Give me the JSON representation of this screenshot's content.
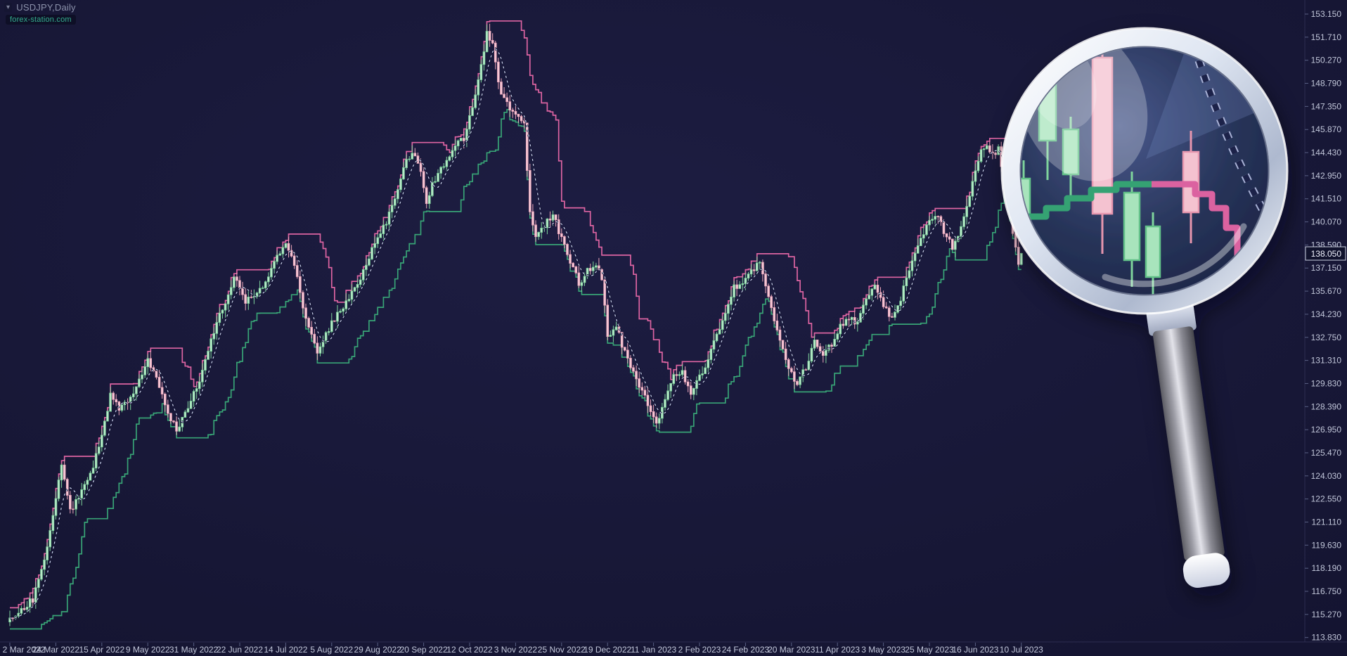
{
  "header": {
    "symbol_label": "USDJPY,Daily",
    "watermark": "forex-station.com",
    "dropdown_glyph": "▾"
  },
  "colors": {
    "background": "#161634",
    "axis_text": "#c2c7da",
    "axis_line": "#2c2c50",
    "bull_fill": "#bfeccf",
    "bull_stroke": "#7fd49c",
    "bear_fill": "#f6cdd9",
    "bear_stroke": "#eda6bb",
    "support_line": "#38a476",
    "resistance_line": "#dd64a2",
    "dotted_ma_core": "#c9cfec",
    "dotted_ma_casing": "#0d0f2b",
    "badge_bg": "#10122c",
    "badge_border": "#c9cede",
    "badge_text": "#f2f4ff",
    "watermark_text": "#34ae8e"
  },
  "chart_data": {
    "type": "candlestick",
    "title": "USDJPY,Daily",
    "symbol": "USDJPY",
    "timeframe": "Daily",
    "ylim": [
      113.83,
      153.15
    ],
    "y_tick_labels": [
      "153.150",
      "151.710",
      "150.270",
      "148.790",
      "147.350",
      "145.870",
      "144.430",
      "142.950",
      "141.510",
      "140.070",
      "138.590",
      "137.150",
      "135.670",
      "134.230",
      "132.750",
      "131.310",
      "129.830",
      "128.390",
      "126.950",
      "125.470",
      "124.030",
      "122.550",
      "121.110",
      "119.630",
      "118.190",
      "116.750",
      "115.270",
      "113.830"
    ],
    "x_tick_labels": [
      "2 Mar 2022",
      "24 Mar 2022",
      "15 Apr 2022",
      "9 May 2022",
      "31 May 2022",
      "22 Jun 2022",
      "14 Jul 2022",
      "5 Aug 2022",
      "29 Aug 2022",
      "20 Sep 2022",
      "12 Oct 2022",
      "3 Nov 2022",
      "25 Nov 2022",
      "19 Dec 2022",
      "11 Jan 2023",
      "2 Feb 2023",
      "24 Feb 2023",
      "20 Mar 2023",
      "11 Apr 2023",
      "3 May 2023",
      "25 May 2023",
      "16 Jun 2023",
      "10 Jul 2023"
    ],
    "x_tick_every_bars": 16,
    "bars_total": 353,
    "noise_amplitude": 0.45,
    "current_price": "138.050",
    "last_close": 138.05,
    "close_anchors": [
      [
        0,
        115.0
      ],
      [
        4,
        115.6
      ],
      [
        8,
        116.2
      ],
      [
        12,
        118.6
      ],
      [
        15,
        121.3
      ],
      [
        18,
        124.9
      ],
      [
        21,
        121.9
      ],
      [
        24,
        122.6
      ],
      [
        28,
        124.1
      ],
      [
        32,
        126.4
      ],
      [
        35,
        129.2
      ],
      [
        38,
        128.1
      ],
      [
        42,
        128.9
      ],
      [
        45,
        130.0
      ],
      [
        48,
        131.2
      ],
      [
        51,
        130.1
      ],
      [
        55,
        128.0
      ],
      [
        58,
        127.0
      ],
      [
        62,
        128.3
      ],
      [
        66,
        130.0
      ],
      [
        70,
        132.6
      ],
      [
        74,
        134.6
      ],
      [
        78,
        136.5
      ],
      [
        82,
        135.1
      ],
      [
        86,
        135.4
      ],
      [
        90,
        136.6
      ],
      [
        94,
        138.2
      ],
      [
        96,
        138.9
      ],
      [
        99,
        137.2
      ],
      [
        103,
        133.9
      ],
      [
        107,
        131.8
      ],
      [
        110,
        133.0
      ],
      [
        114,
        134.3
      ],
      [
        118,
        135.2
      ],
      [
        122,
        136.6
      ],
      [
        126,
        138.2
      ],
      [
        129,
        139.2
      ],
      [
        133,
        141.0
      ],
      [
        137,
        143.5
      ],
      [
        140,
        144.5
      ],
      [
        143,
        143.2
      ],
      [
        145,
        141.2
      ],
      [
        147,
        142.4
      ],
      [
        151,
        143.6
      ],
      [
        155,
        144.8
      ],
      [
        158,
        145.3
      ],
      [
        161,
        147.2
      ],
      [
        164,
        150.0
      ],
      [
        166,
        151.9
      ],
      [
        168,
        151.3
      ],
      [
        170,
        148.7
      ],
      [
        173,
        147.4
      ],
      [
        176,
        146.7
      ],
      [
        179,
        146.1
      ],
      [
        181,
        140.6
      ],
      [
        183,
        138.9
      ],
      [
        186,
        139.8
      ],
      [
        189,
        140.5
      ],
      [
        192,
        139.0
      ],
      [
        195,
        137.6
      ],
      [
        198,
        136.2
      ],
      [
        201,
        136.9
      ],
      [
        204,
        137.4
      ],
      [
        206,
        136.6
      ],
      [
        208,
        132.8
      ],
      [
        211,
        133.4
      ],
      [
        214,
        131.8
      ],
      [
        217,
        130.6
      ],
      [
        220,
        129.4
      ],
      [
        223,
        128.0
      ],
      [
        225,
        127.3
      ],
      [
        228,
        128.9
      ],
      [
        231,
        130.3
      ],
      [
        234,
        130.5
      ],
      [
        237,
        129.3
      ],
      [
        240,
        130.2
      ],
      [
        243,
        131.4
      ],
      [
        246,
        132.8
      ],
      [
        249,
        134.1
      ],
      [
        252,
        135.9
      ],
      [
        255,
        136.3
      ],
      [
        258,
        136.9
      ],
      [
        261,
        137.6
      ],
      [
        263,
        136.1
      ],
      [
        266,
        133.6
      ],
      [
        269,
        132.0
      ],
      [
        272,
        130.5
      ],
      [
        274,
        129.7
      ],
      [
        277,
        130.9
      ],
      [
        280,
        132.6
      ],
      [
        283,
        131.4
      ],
      [
        286,
        132.4
      ],
      [
        289,
        133.4
      ],
      [
        292,
        134.1
      ],
      [
        295,
        133.6
      ],
      [
        298,
        135.4
      ],
      [
        301,
        136.1
      ],
      [
        304,
        134.9
      ],
      [
        307,
        133.8
      ],
      [
        310,
        135.2
      ],
      [
        313,
        137.1
      ],
      [
        316,
        138.6
      ],
      [
        319,
        139.7
      ],
      [
        322,
        140.5
      ],
      [
        325,
        139.5
      ],
      [
        328,
        138.4
      ],
      [
        331,
        139.8
      ],
      [
        334,
        141.6
      ],
      [
        336,
        143.2
      ],
      [
        338,
        144.4
      ],
      [
        340,
        144.9
      ],
      [
        342,
        144.3
      ],
      [
        344,
        144.7
      ],
      [
        346,
        142.5
      ],
      [
        348,
        140.7
      ],
      [
        350,
        138.3
      ],
      [
        351,
        137.4
      ],
      [
        352,
        138.05
      ]
    ],
    "indicators": [
      {
        "name": "support-line",
        "type": "rolling-low",
        "window": 11,
        "color": "#38a476"
      },
      {
        "name": "resistance-line",
        "type": "rolling-high",
        "window": 11,
        "color": "#dd64a2"
      },
      {
        "name": "dotted-ma",
        "type": "sma",
        "window": 6,
        "style": "dotted",
        "color": "#c9cfec"
      }
    ]
  }
}
